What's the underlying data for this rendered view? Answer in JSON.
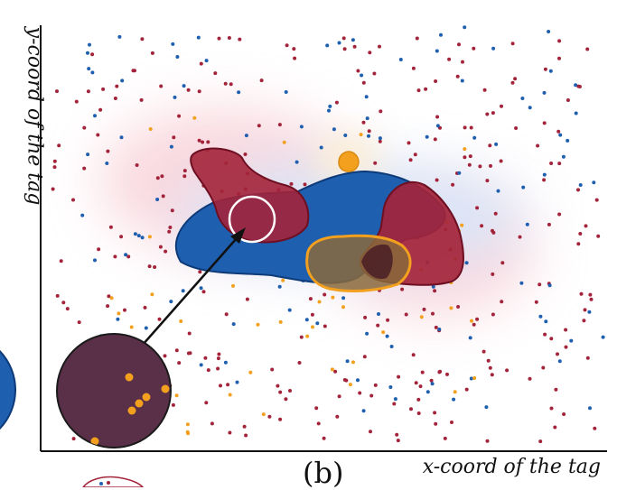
{
  "chart_data": {
    "type": "scatter",
    "xlabel": "x-coord of the tag",
    "ylabel": "y-coord of the tag",
    "panel_label": "(b)",
    "grid": false,
    "series": [
      {
        "class": "red",
        "color": "#a3243a"
      },
      {
        "class": "blue",
        "color": "#1f5fb0"
      },
      {
        "class": "orange",
        "color": "#f2a01e"
      }
    ],
    "regions": [
      {
        "class": "red",
        "color": "#a3243a"
      },
      {
        "class": "blue",
        "color": "#1f5fb0"
      },
      {
        "class": "orange",
        "color": "#f2a01e"
      }
    ],
    "magnifier": {
      "fill": "#5a3048"
    }
  }
}
